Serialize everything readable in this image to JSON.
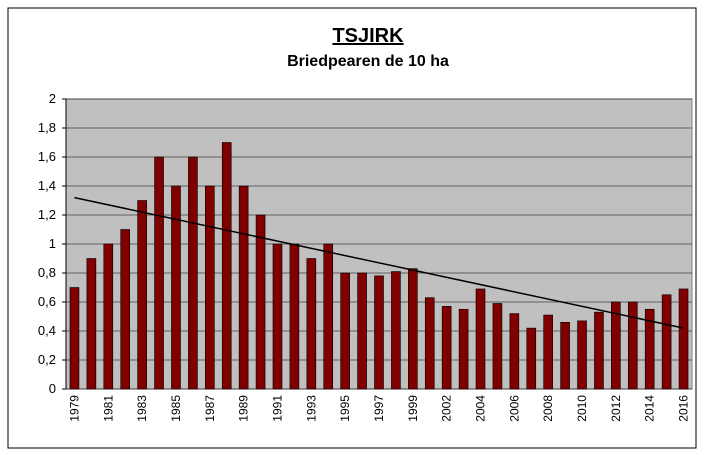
{
  "chart_data": {
    "type": "bar",
    "title": "TSJIRK",
    "subtitle": "Briedpearen de 10 ha",
    "categories": [
      "1979",
      null,
      "1981",
      null,
      "1983",
      null,
      "1985",
      null,
      "1987",
      null,
      "1989",
      null,
      "1991",
      null,
      "1993",
      null,
      "1995",
      null,
      "1997",
      null,
      "1999",
      null,
      "2002",
      null,
      "2004",
      null,
      "2006",
      null,
      "2008",
      null,
      "2010",
      null,
      "2012",
      null,
      "2014",
      null,
      "2016"
    ],
    "values": [
      0.7,
      0.9,
      1.0,
      1.1,
      1.3,
      1.6,
      1.4,
      1.6,
      1.4,
      1.7,
      1.4,
      1.2,
      1.0,
      1.0,
      0.9,
      1.0,
      0.8,
      0.8,
      0.78,
      0.81,
      0.83,
      0.63,
      0.57,
      0.55,
      0.69,
      0.59,
      0.52,
      0.42,
      0.51,
      0.46,
      0.47,
      0.53,
      0.6,
      0.6,
      0.55,
      0.65,
      0.69
    ],
    "color": "#800000",
    "trendline": {
      "color": "#000000",
      "values": [
        1.32,
        0.42
      ]
    },
    "ylim": [
      0,
      2
    ],
    "yticks": [
      0,
      {
        "value": 0.2,
        "label": "0,2"
      },
      {
        "value": 0.4,
        "label": "0,4"
      },
      {
        "value": 0.6,
        "label": "0,6"
      },
      {
        "value": 0.8,
        "label": "0,8"
      },
      1,
      {
        "value": 1.2,
        "label": "1,2"
      },
      {
        "value": 1.4,
        "label": "1,4"
      },
      {
        "value": 1.6,
        "label": "1,6"
      },
      {
        "value": 1.8,
        "label": "1,8"
      },
      2
    ],
    "grid": true,
    "plot_background": "#c0c0c0"
  }
}
